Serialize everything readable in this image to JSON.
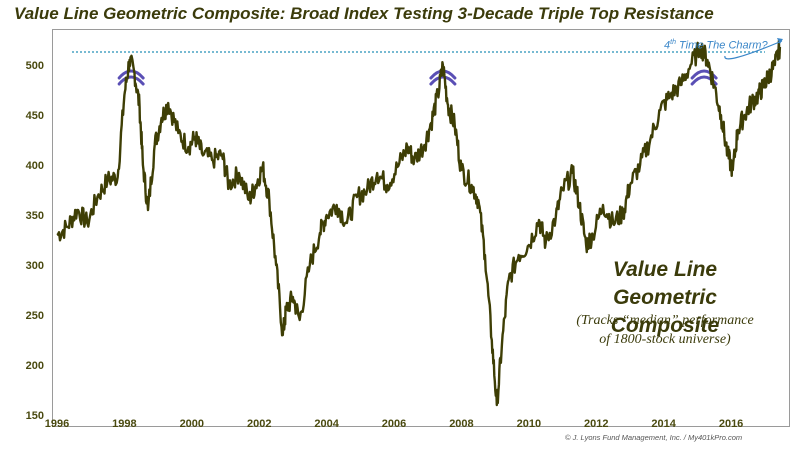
{
  "chart_data": {
    "type": "line",
    "title": "Value Line Geometric Composite: Broad Index Testing 3-Decade Triple Top Resistance",
    "xlabel": "",
    "ylabel": "",
    "xlim": [
      1996.0,
      2017.6
    ],
    "ylim": [
      143,
      533
    ],
    "x_ticks": [
      "1996",
      "1998",
      "2000",
      "2002",
      "2004",
      "2006",
      "2008",
      "2010",
      "2012",
      "2014",
      "2016"
    ],
    "y_ticks": [
      "150",
      "200",
      "250",
      "300",
      "350",
      "400",
      "450",
      "500"
    ],
    "grid": false,
    "resistance_level": 513,
    "series": [
      {
        "name": "Value Line Geometric Composite",
        "color": "#3e3e05",
        "x": [
          1996.0,
          1996.3,
          1996.6,
          1996.9,
          1997.2,
          1997.5,
          1997.8,
          1998.0,
          1998.15,
          1998.3,
          1998.45,
          1998.55,
          1998.7,
          1998.9,
          1999.1,
          1999.3,
          1999.6,
          1999.9,
          2000.1,
          2000.3,
          2000.6,
          2000.9,
          2001.1,
          2001.4,
          2001.7,
          2001.9,
          2002.1,
          2002.3,
          2002.5,
          2002.7,
          2002.8,
          2003.0,
          2003.2,
          2003.5,
          2003.8,
          2004.0,
          2004.3,
          2004.6,
          2004.9,
          2005.2,
          2005.5,
          2005.8,
          2006.1,
          2006.4,
          2006.6,
          2006.9,
          2007.1,
          2007.3,
          2007.45,
          2007.6,
          2007.8,
          2008.0,
          2008.3,
          2008.5,
          2008.7,
          2008.9,
          2009.05,
          2009.2,
          2009.4,
          2009.7,
          2010.0,
          2010.3,
          2010.5,
          2010.8,
          2011.0,
          2011.3,
          2011.5,
          2011.7,
          2011.9,
          2012.2,
          2012.5,
          2012.8,
          2013.0,
          2013.3,
          2013.6,
          2013.9,
          2014.2,
          2014.5,
          2014.8,
          2015.1,
          2015.3,
          2015.5,
          2015.7,
          2015.9,
          2016.05,
          2016.2,
          2016.4,
          2016.6,
          2016.8,
          2016.95,
          2017.1,
          2017.3,
          2017.45
        ],
        "y": [
          330,
          338,
          355,
          342,
          368,
          385,
          388,
          470,
          505,
          492,
          458,
          400,
          355,
          420,
          447,
          462,
          432,
          418,
          428,
          412,
          405,
          410,
          380,
          392,
          365,
          380,
          398,
          365,
          300,
          230,
          255,
          268,
          245,
          300,
          332,
          350,
          360,
          342,
          368,
          375,
          392,
          380,
          398,
          418,
          405,
          420,
          442,
          470,
          500,
          460,
          440,
          395,
          380,
          365,
          310,
          225,
          160,
          220,
          285,
          310,
          320,
          345,
          322,
          348,
          375,
          392,
          360,
          320,
          330,
          360,
          342,
          352,
          380,
          400,
          425,
          455,
          470,
          480,
          500,
          518,
          505,
          480,
          450,
          410,
          395,
          435,
          450,
          462,
          470,
          478,
          488,
          500,
          518
        ]
      }
    ]
  },
  "annotation": {
    "lead": "4",
    "sup": "th",
    "rest": " Time The Charm?"
  },
  "callout": {
    "line1": "Value Line",
    "line2": "Geometric Composite",
    "sub1": "(Tracks “median” performance",
    "sub2": "of 1800-stock universe)"
  },
  "credit": "© J. Lyons Fund Management, Inc. / My401kPro.com",
  "colors": {
    "series": "#3e3e05",
    "resistance": "#4aa3c4",
    "arcs": "#5a4fb5",
    "annotation": "#3a86c8"
  }
}
